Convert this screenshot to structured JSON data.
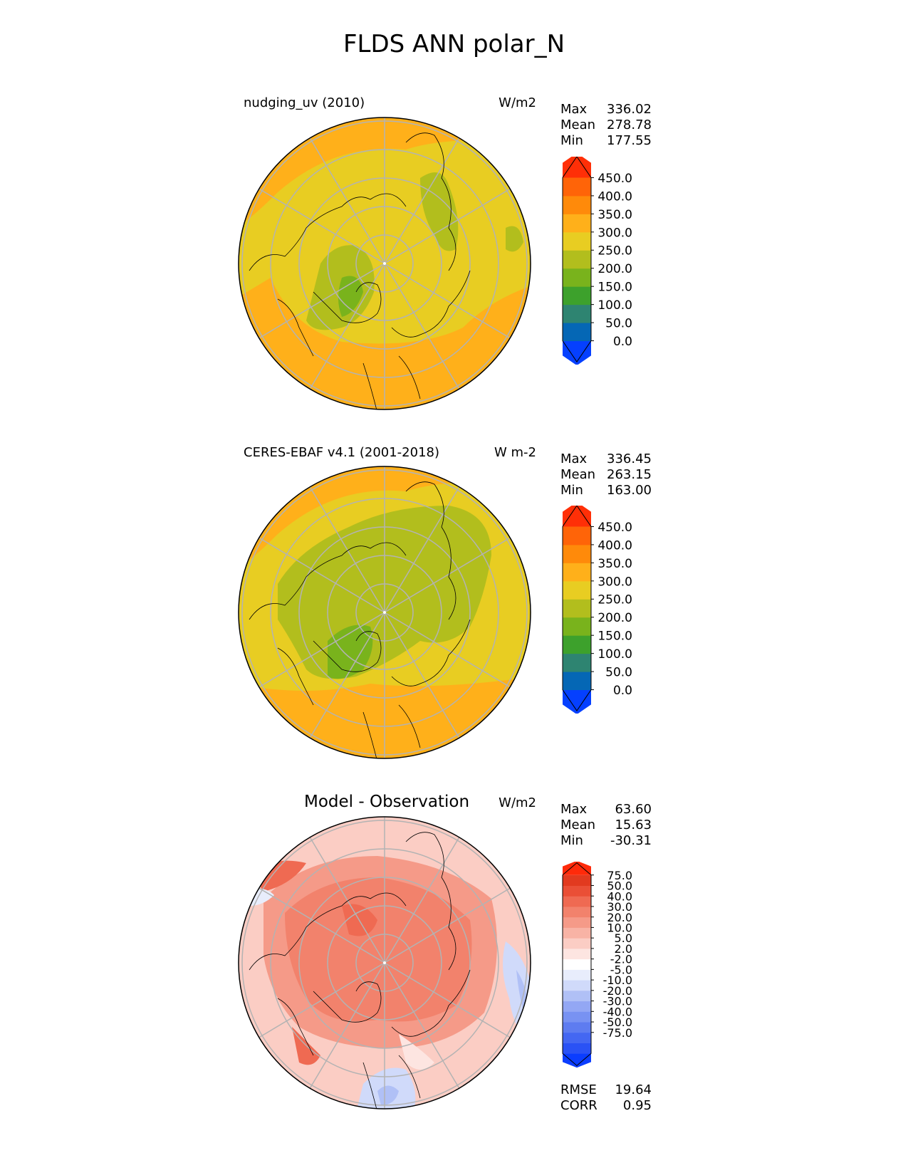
{
  "title": "FLDS ANN polar_N",
  "panels": [
    {
      "label": "nudging_uv (2010)",
      "units": "W/m2",
      "stats": [
        {
          "name": "Max",
          "value": "336.02"
        },
        {
          "name": "Mean",
          "value": "278.78"
        },
        {
          "name": "Min",
          "value": "177.55"
        }
      ],
      "colorbar": {
        "ticks": [
          "450.0",
          "400.0",
          "350.0",
          "300.0",
          "250.0",
          "200.0",
          "150.0",
          "100.0",
          "50.0",
          "0.0"
        ],
        "colors": [
          "#0540ff",
          "#0567b5",
          "#2e8471",
          "#3da12c",
          "#79b31c",
          "#b2be1d",
          "#e8cd22",
          "#ffb01a",
          "#ff8a0a",
          "#ff6408",
          "#ff2f07"
        ]
      }
    },
    {
      "label": "CERES-EBAF v4.1 (2001-2018)",
      "units": "W m-2",
      "stats": [
        {
          "name": "Max",
          "value": "336.45"
        },
        {
          "name": "Mean",
          "value": "263.15"
        },
        {
          "name": "Min",
          "value": "163.00"
        }
      ],
      "colorbar": {
        "ticks": [
          "450.0",
          "400.0",
          "350.0",
          "300.0",
          "250.0",
          "200.0",
          "150.0",
          "100.0",
          "50.0",
          "0.0"
        ],
        "colors": [
          "#0540ff",
          "#0567b5",
          "#2e8471",
          "#3da12c",
          "#79b31c",
          "#b2be1d",
          "#e8cd22",
          "#ffb01a",
          "#ff8a0a",
          "#ff6408",
          "#ff2f07"
        ]
      }
    },
    {
      "label": "Model - Observation",
      "units": "W/m2",
      "stats": [
        {
          "name": "Max",
          "value": "63.60"
        },
        {
          "name": "Mean",
          "value": "15.63"
        },
        {
          "name": "Min",
          "value": "-30.31"
        }
      ],
      "extra_stats": [
        {
          "name": "RMSE",
          "value": "19.64"
        },
        {
          "name": "CORR",
          "value": "0.95"
        }
      ],
      "colorbar": {
        "ticks": [
          "75.0",
          "50.0",
          "40.0",
          "30.0",
          "20.0",
          "10.0",
          "5.0",
          "2.0",
          "-2.0",
          "-5.0",
          "-10.0",
          "-20.0",
          "-30.0",
          "-40.0",
          "-50.0",
          "-75.0"
        ],
        "colors": [
          "#0b3dff",
          "#2a52f5",
          "#4467f2",
          "#5e7cf0",
          "#7892f2",
          "#93a7f4",
          "#b0c0f6",
          "#d0dafa",
          "#e8edfc",
          "#ffffff",
          "#fde5e1",
          "#fbcdc4",
          "#f8b3a5",
          "#f59a88",
          "#f2826c",
          "#ef6a52",
          "#ea4f36",
          "#e23a1f",
          "#ff2a0a"
        ]
      }
    }
  ],
  "chart_data": {
    "type": "heatmap",
    "title": "FLDS ANN polar_N",
    "projection": "north polar stereographic",
    "maps": [
      {
        "name": "nudging_uv (2010)",
        "units": "W/m2",
        "max": 336.02,
        "mean": 278.78,
        "min": 177.55,
        "levels": [
          0,
          50,
          100,
          150,
          200,
          250,
          300,
          350,
          400,
          450
        ]
      },
      {
        "name": "CERES-EBAF v4.1 (2001-2018)",
        "units": "W m-2",
        "max": 336.45,
        "mean": 263.15,
        "min": 163.0,
        "levels": [
          0,
          50,
          100,
          150,
          200,
          250,
          300,
          350,
          400,
          450
        ]
      },
      {
        "name": "Model - Observation",
        "units": "W/m2",
        "max": 63.6,
        "mean": 15.63,
        "min": -30.31,
        "rmse": 19.64,
        "corr": 0.95,
        "levels": [
          -75,
          -50,
          -40,
          -30,
          -20,
          -10,
          -5,
          -2,
          2,
          5,
          10,
          20,
          30,
          40,
          50,
          75
        ]
      }
    ]
  }
}
